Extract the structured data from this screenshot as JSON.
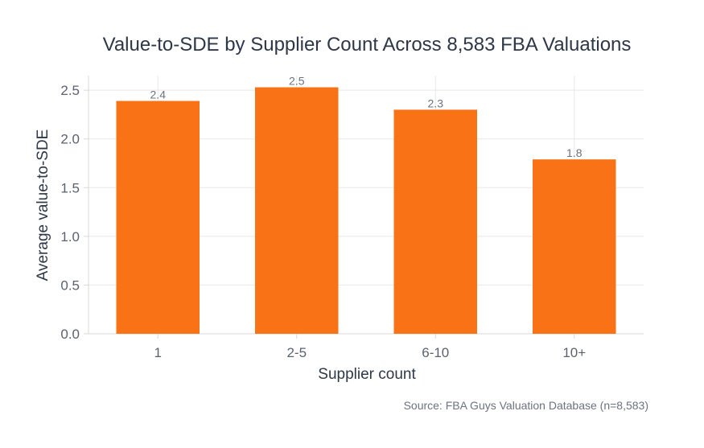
{
  "chart_data": {
    "type": "bar",
    "title": "Value-to-SDE by Supplier Count Across 8,583 FBA Valuations",
    "xlabel": "Supplier count",
    "ylabel": "Average value-to-SDE",
    "categories": [
      "1",
      "2-5",
      "6-10",
      "10+"
    ],
    "values": [
      2.39,
      2.53,
      2.3,
      1.79
    ],
    "data_labels": [
      "2.4",
      "2.5",
      "2.3",
      "1.8"
    ],
    "ylim": [
      0,
      2.65
    ],
    "yticks": [
      0,
      0.5,
      1,
      1.5,
      2,
      2.5
    ],
    "ytick_labels": [
      "0.0",
      "0.5",
      "1.0",
      "1.5",
      "2.0",
      "2.5"
    ],
    "grid": true,
    "bar_color": "#f97316",
    "source": "Source: FBA Guys Valuation Database (n=8,583)"
  }
}
